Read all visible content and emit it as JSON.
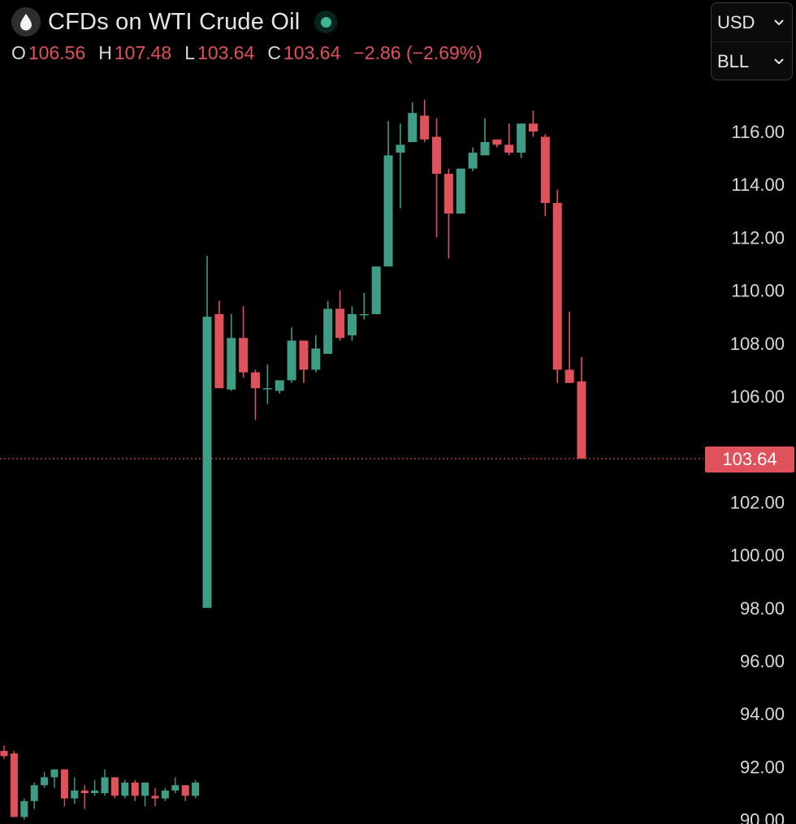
{
  "header": {
    "title": "CFDs on WTI Crude Oil",
    "logo_icon": "oil-drop-icon",
    "status_icon": "market-status-dot-icon",
    "ohlc": {
      "o_label": "O",
      "o_value": "106.56",
      "h_label": "H",
      "h_value": "107.48",
      "l_label": "L",
      "l_value": "103.64",
      "c_label": "C",
      "c_value": "103.64",
      "change": "−2.86 (−2.69%)"
    }
  },
  "selectors": {
    "currency": "USD",
    "unit": "BLL"
  },
  "last_price": {
    "label": "103.64",
    "value": 103.64
  },
  "colors": {
    "up": "#3f9c85",
    "down": "#e0525b",
    "background": "#000000",
    "axis_text": "#d9d9d9"
  },
  "chart_data": {
    "type": "candlestick",
    "ylim": [
      90,
      117.2
    ],
    "y_ticks": [
      "116.00",
      "114.00",
      "112.00",
      "110.00",
      "108.00",
      "106.00",
      "102.00",
      "100.00",
      "98.00",
      "96.00",
      "94.00",
      "92.00",
      "90.00"
    ],
    "grid": false,
    "candles": [
      {
        "o": 98.0,
        "h": 111.3,
        "l": 98.0,
        "c": 109.0
      },
      {
        "o": 109.1,
        "h": 109.6,
        "l": 106.3,
        "c": 106.3
      },
      {
        "o": 106.25,
        "h": 109.1,
        "l": 106.2,
        "c": 108.2
      },
      {
        "o": 108.2,
        "h": 109.4,
        "l": 106.7,
        "c": 106.9
      },
      {
        "o": 106.9,
        "h": 107.0,
        "l": 105.1,
        "c": 106.3
      },
      {
        "o": 106.3,
        "h": 107.2,
        "l": 105.7,
        "c": 106.3
      },
      {
        "o": 106.2,
        "h": 106.6,
        "l": 106.1,
        "c": 106.6
      },
      {
        "o": 106.6,
        "h": 108.6,
        "l": 106.5,
        "c": 108.1
      },
      {
        "o": 108.1,
        "h": 108.1,
        "l": 106.5,
        "c": 107.0
      },
      {
        "o": 107.0,
        "h": 108.3,
        "l": 106.9,
        "c": 107.8
      },
      {
        "o": 107.6,
        "h": 109.6,
        "l": 107.6,
        "c": 109.3
      },
      {
        "o": 109.3,
        "h": 110.0,
        "l": 108.1,
        "c": 108.2
      },
      {
        "o": 108.3,
        "h": 109.4,
        "l": 108.1,
        "c": 109.1
      },
      {
        "o": 109.1,
        "h": 109.9,
        "l": 108.9,
        "c": 109.1
      },
      {
        "o": 109.1,
        "h": 110.9,
        "l": 109.1,
        "c": 110.9
      },
      {
        "o": 110.9,
        "h": 116.4,
        "l": 110.9,
        "c": 115.1
      },
      {
        "o": 115.2,
        "h": 116.3,
        "l": 113.1,
        "c": 115.5
      },
      {
        "o": 115.6,
        "h": 117.1,
        "l": 115.6,
        "c": 116.7
      },
      {
        "o": 116.6,
        "h": 117.2,
        "l": 115.6,
        "c": 115.7
      },
      {
        "o": 115.8,
        "h": 116.5,
        "l": 112.0,
        "c": 114.4
      },
      {
        "o": 114.4,
        "h": 114.6,
        "l": 111.2,
        "c": 112.9
      },
      {
        "o": 112.9,
        "h": 114.6,
        "l": 112.9,
        "c": 114.6
      },
      {
        "o": 114.6,
        "h": 115.4,
        "l": 114.5,
        "c": 115.2
      },
      {
        "o": 115.1,
        "h": 116.5,
        "l": 115.1,
        "c": 115.6
      },
      {
        "o": 115.7,
        "h": 115.7,
        "l": 115.4,
        "c": 115.5
      },
      {
        "o": 115.5,
        "h": 116.3,
        "l": 115.1,
        "c": 115.2
      },
      {
        "o": 115.2,
        "h": 116.3,
        "l": 115.0,
        "c": 116.3
      },
      {
        "o": 116.3,
        "h": 116.8,
        "l": 115.8,
        "c": 116.0
      },
      {
        "o": 115.8,
        "h": 115.9,
        "l": 112.8,
        "c": 113.3
      },
      {
        "o": 113.3,
        "h": 113.8,
        "l": 106.5,
        "c": 107.0
      },
      {
        "o": 107.0,
        "h": 109.2,
        "l": 106.5,
        "c": 106.5
      },
      {
        "o": 106.56,
        "h": 107.48,
        "l": 103.64,
        "c": 103.64
      }
    ],
    "mini_candles": [
      {
        "o": 92.6,
        "h": 92.8,
        "l": 92.3,
        "c": 92.4
      },
      {
        "o": 92.5,
        "h": 92.6,
        "l": 90.1,
        "c": 90.1
      },
      {
        "o": 90.1,
        "h": 90.8,
        "l": 90.0,
        "c": 90.7
      },
      {
        "o": 90.7,
        "h": 91.4,
        "l": 90.4,
        "c": 91.3
      },
      {
        "o": 91.3,
        "h": 91.8,
        "l": 91.2,
        "c": 91.6
      },
      {
        "o": 91.6,
        "h": 91.9,
        "l": 91.2,
        "c": 91.9
      },
      {
        "o": 91.9,
        "h": 91.9,
        "l": 90.5,
        "c": 90.8
      },
      {
        "o": 90.8,
        "h": 91.6,
        "l": 90.6,
        "c": 91.1
      },
      {
        "o": 91.1,
        "h": 91.3,
        "l": 90.4,
        "c": 91.0
      },
      {
        "o": 91.0,
        "h": 91.5,
        "l": 90.9,
        "c": 91.1
      },
      {
        "o": 91.0,
        "h": 91.9,
        "l": 90.9,
        "c": 91.6
      },
      {
        "o": 91.6,
        "h": 91.6,
        "l": 90.8,
        "c": 90.9
      },
      {
        "o": 90.9,
        "h": 91.5,
        "l": 90.8,
        "c": 91.4
      },
      {
        "o": 91.4,
        "h": 91.5,
        "l": 90.7,
        "c": 90.9
      },
      {
        "o": 90.9,
        "h": 91.4,
        "l": 90.5,
        "c": 91.4
      },
      {
        "o": 90.9,
        "h": 91.2,
        "l": 90.5,
        "c": 90.8
      },
      {
        "o": 90.8,
        "h": 91.2,
        "l": 90.7,
        "c": 91.1
      },
      {
        "o": 91.1,
        "h": 91.6,
        "l": 91.0,
        "c": 91.3
      },
      {
        "o": 91.3,
        "h": 91.3,
        "l": 90.7,
        "c": 90.9
      },
      {
        "o": 90.9,
        "h": 91.5,
        "l": 90.8,
        "c": 91.4
      }
    ]
  }
}
